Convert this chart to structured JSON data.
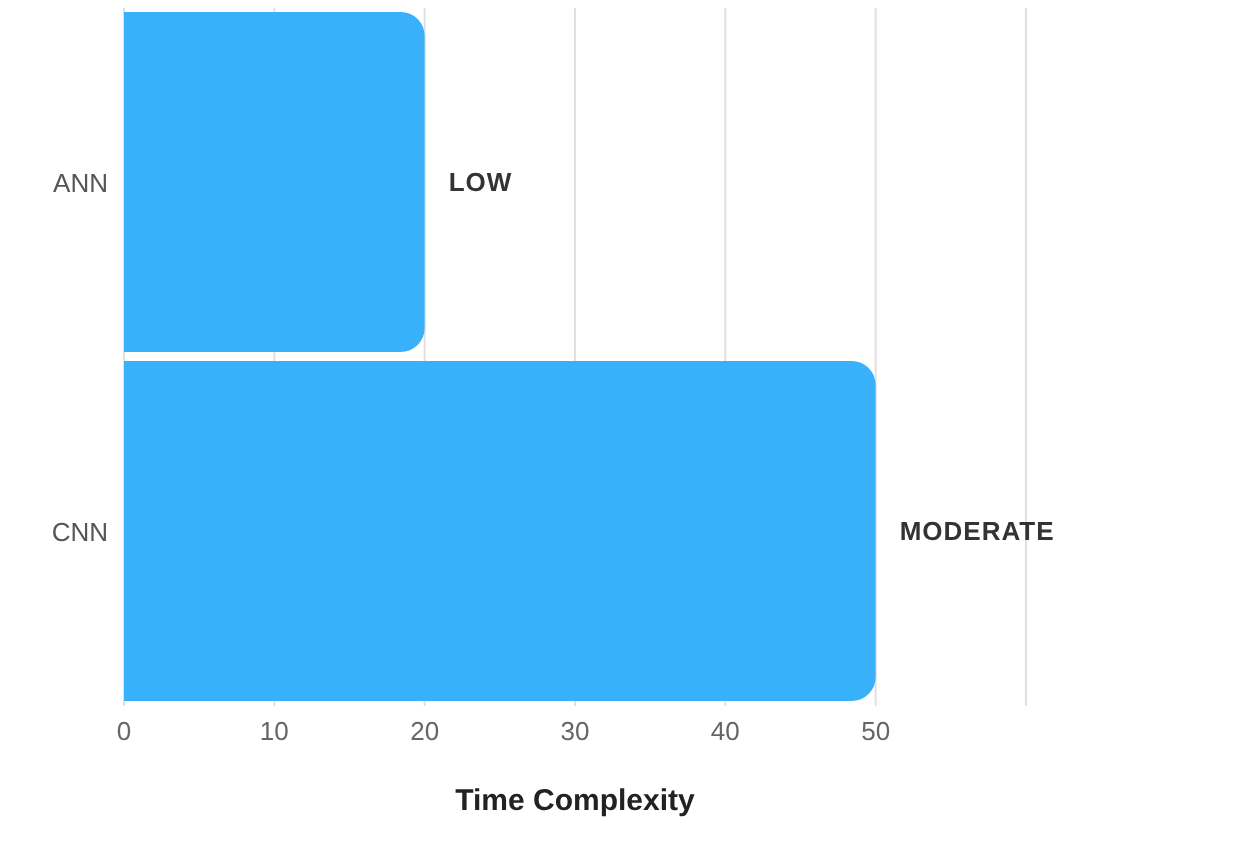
{
  "chart_data": {
    "type": "bar",
    "orientation": "horizontal",
    "xlabel": "Time Complexity",
    "categories": [
      "ANN",
      "CNN"
    ],
    "values": [
      20,
      50
    ],
    "value_labels": [
      "LOW",
      "MODERATE"
    ],
    "color": "#38b0fa",
    "xlim": [
      0,
      60
    ],
    "xticks": [
      0,
      10,
      20,
      30,
      40,
      50
    ],
    "grid": "x"
  }
}
